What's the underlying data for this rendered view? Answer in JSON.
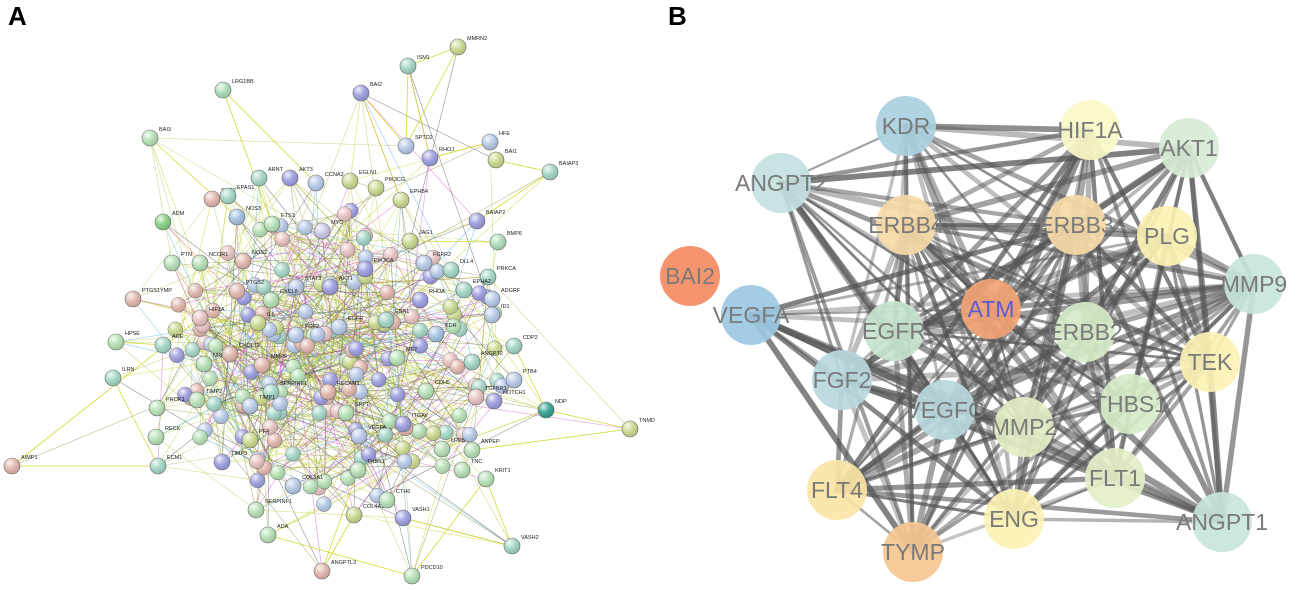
{
  "panels": {
    "a": {
      "letter": "A"
    },
    "b": {
      "letter": "B"
    }
  },
  "panel_a_nodes": [
    {
      "label": "MMRN2",
      "color": "#c8d88a"
    },
    {
      "label": "ISM1",
      "color": "#9fd4c4"
    },
    {
      "label": "LRG1BB",
      "color": "#a9dcb8"
    },
    {
      "label": "BAI2",
      "color": "#9a9ae0"
    },
    {
      "label": "BAI3",
      "color": "#b4e0b4"
    },
    {
      "label": "SPTD2",
      "color": "#b4c8e8"
    },
    {
      "label": "HFE",
      "color": "#b4c8e8"
    },
    {
      "label": "RHOJ",
      "color": "#9a9ae0"
    },
    {
      "label": "BAI1",
      "color": "#c8d88a"
    },
    {
      "label": "BAIAP3",
      "color": "#9fd4c4"
    },
    {
      "label": "ARNT",
      "color": "#9fd4c4"
    },
    {
      "label": "AKT3",
      "color": "#9a9ae0"
    },
    {
      "label": "CCNA2",
      "color": "#b4c8e8"
    },
    {
      "label": "EGLN1",
      "color": "#c8d88a"
    },
    {
      "label": "SOD2",
      "color": "#e0b4a9"
    },
    {
      "label": "EPAS1",
      "color": "#9fd4c4"
    },
    {
      "label": "PIK3CG",
      "color": "#c8d88a"
    },
    {
      "label": "EPHB4",
      "color": "#c8d88a"
    },
    {
      "label": "BAIAP2",
      "color": "#9a9ae0"
    },
    {
      "label": "ADM",
      "color": "#7fcf7f"
    },
    {
      "label": "NOS3",
      "color": "#9fc0e0"
    },
    {
      "label": "ETS1",
      "color": "#b4e0b4"
    },
    {
      "label": "MYC",
      "color": "#c8c8e8"
    },
    {
      "label": "JAG1",
      "color": "#c8d88a"
    },
    {
      "label": "BMP6",
      "color": "#a9dcb8"
    },
    {
      "label": "PTN",
      "color": "#b4e0b4"
    },
    {
      "label": "NCOR1",
      "color": "#b4e0b4"
    },
    {
      "label": "NOS2",
      "color": "#e0b4a9"
    },
    {
      "label": "PIK3CA",
      "color": "#9a9ae0"
    },
    {
      "label": "FGFR2",
      "color": "#b4c8e8"
    },
    {
      "label": "DLL4",
      "color": "#9fd4c4"
    },
    {
      "label": "PRKCA",
      "color": "#9fd4c4"
    },
    {
      "label": "PTGS2",
      "color": "#e0b4a9"
    },
    {
      "label": "STAT3",
      "color": "#b4c8e8"
    },
    {
      "label": "AKT1",
      "color": "#9a9ae0"
    },
    {
      "label": "EPHA2",
      "color": "#9fd4c4"
    },
    {
      "label": "ADGRF",
      "color": "#b4c8e8"
    },
    {
      "label": "PTGS1YMP",
      "color": "#e0b4a9"
    },
    {
      "label": "HIF1A",
      "color": "#e8c0c0"
    },
    {
      "label": "CXCL8",
      "color": "#b4e0b4"
    },
    {
      "label": "RHOA",
      "color": "#9a9ae0"
    },
    {
      "label": "ID1",
      "color": "#b4c8e8"
    },
    {
      "label": "HPSE",
      "color": "#b4e0b4"
    },
    {
      "label": "ACE",
      "color": "#9fd4c4"
    },
    {
      "label": "IL6",
      "color": "#c8d88a"
    },
    {
      "label": "EGFR",
      "color": "#b4c8e8"
    },
    {
      "label": "ESR1",
      "color": "#9fd4c4"
    },
    {
      "label": "FGF2",
      "color": "#b4c8e8"
    },
    {
      "label": "KDR",
      "color": "#9fc0e0"
    },
    {
      "label": "CDP2",
      "color": "#9fd4c4"
    },
    {
      "label": "ILRN",
      "color": "#9fd4c4"
    },
    {
      "label": "NRP2",
      "color": "#b4e0b4"
    },
    {
      "label": "CXCL12",
      "color": "#e0b4a9"
    },
    {
      "label": "MMP9",
      "color": "#e0b4a9"
    },
    {
      "label": "ANGPT2",
      "color": "#9fd4c4"
    },
    {
      "label": "PTB4",
      "color": "#b4c8e8"
    },
    {
      "label": "MET",
      "color": "#b4e0b4"
    },
    {
      "label": "SERPINE1",
      "color": "#9fd4c4"
    },
    {
      "label": "PECAM1",
      "color": "#e0b4a9"
    },
    {
      "label": "CDH5",
      "color": "#b4e0b4"
    },
    {
      "label": "NDP",
      "color": "#2e9e8e"
    },
    {
      "label": "TGFBR1",
      "color": "#e8c0c0"
    },
    {
      "label": "NOTCH1",
      "color": "#9a9ae0"
    },
    {
      "label": "TNMD",
      "color": "#c8d88a"
    },
    {
      "label": "PROK1",
      "color": "#b4e0b4"
    },
    {
      "label": "TIMP2",
      "color": "#b4e0b4"
    },
    {
      "label": "TIMP1",
      "color": "#b4c8e8"
    },
    {
      "label": "SPP1",
      "color": "#b4e0b4"
    },
    {
      "label": "ITGAV",
      "color": "#9a9ae0"
    },
    {
      "label": "RECK",
      "color": "#b4e0b4"
    },
    {
      "label": "PF4",
      "color": "#c8d88a"
    },
    {
      "label": "VEGFA",
      "color": "#b4c8e8"
    },
    {
      "label": "ANPEP",
      "color": "#b4e0b4"
    },
    {
      "label": "AIMP1",
      "color": "#e0b4a9"
    },
    {
      "label": "ECM1",
      "color": "#9fd4c4"
    },
    {
      "label": "TIMP3",
      "color": "#9a9ae0"
    },
    {
      "label": "THBS1",
      "color": "#b4e0b4"
    },
    {
      "label": "LRP5",
      "color": "#b4e0b4"
    },
    {
      "label": "COL3A1",
      "color": "#b4c8e8"
    },
    {
      "label": "TNC",
      "color": "#b4e0b4"
    },
    {
      "label": "KRIT1",
      "color": "#b4e0b4"
    },
    {
      "label": "SERPINF1",
      "color": "#b4e0b4"
    },
    {
      "label": "COL4A1",
      "color": "#c8d88a"
    },
    {
      "label": "CTH6",
      "color": "#b4e0b4"
    },
    {
      "label": "VASH1",
      "color": "#9a9ae0"
    },
    {
      "label": "ADA",
      "color": "#b4e0b4"
    },
    {
      "label": "VASH2",
      "color": "#9fd4c4"
    },
    {
      "label": "ANGPTL3",
      "color": "#e0b4a9"
    },
    {
      "label": "PDCD10",
      "color": "#b4e0b4"
    }
  ],
  "panel_b_nodes": [
    {
      "label": "KDR",
      "color": "#a9d0e0"
    },
    {
      "label": "HIF1A",
      "color": "#fbfac8"
    },
    {
      "label": "AKT1",
      "color": "#d6ecd6"
    },
    {
      "label": "ANGPT2",
      "color": "#c4e0e2"
    },
    {
      "label": "ERBB4",
      "color": "#f6d9a7"
    },
    {
      "label": "ERBB3",
      "color": "#f6d9a7"
    },
    {
      "label": "PLG",
      "color": "#fbf2b4"
    },
    {
      "label": "BAI2",
      "color": "#f48b63"
    },
    {
      "label": "MMP9",
      "color": "#c8e5d8"
    },
    {
      "label": "VEGFA",
      "color": "#9cc8e2"
    },
    {
      "label": "ATM",
      "color": "#f2a373"
    },
    {
      "label": "EGFR",
      "color": "#c8e4d0"
    },
    {
      "label": "ERBB2",
      "color": "#d6ecc8"
    },
    {
      "label": "TEK",
      "color": "#fbf2b4"
    },
    {
      "label": "FGF2",
      "color": "#b8d8e0"
    },
    {
      "label": "VEGFC",
      "color": "#b8d8e0"
    },
    {
      "label": "MMP2",
      "color": "#e2edc4"
    },
    {
      "label": "THBS1",
      "color": "#d6ecc8"
    },
    {
      "label": "FLT1",
      "color": "#e2f0c8"
    },
    {
      "label": "FLT4",
      "color": "#fbe4a4"
    },
    {
      "label": "ENG",
      "color": "#fbf2b4"
    },
    {
      "label": "ANGPT1",
      "color": "#c8e5d8"
    },
    {
      "label": "TYMP",
      "color": "#f6c690"
    }
  ]
}
